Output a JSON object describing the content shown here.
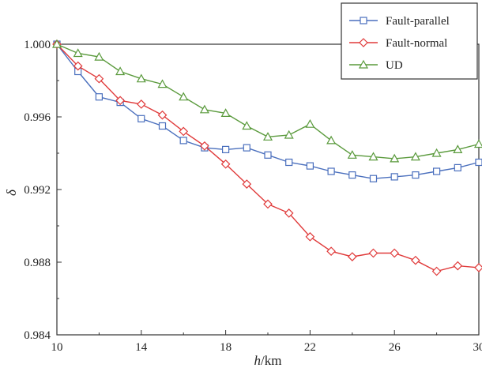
{
  "chart_data": {
    "type": "line",
    "xlabel": {
      "var": "h",
      "unit": "/km"
    },
    "ylabel": "δ",
    "xlim": [
      10,
      30
    ],
    "ylim": [
      0.984,
      1.0
    ],
    "x_ticks": [
      10,
      14,
      18,
      22,
      26,
      30
    ],
    "y_ticks": [
      "1.000",
      "0.996",
      "0.992",
      "0.988",
      "0.984"
    ],
    "y_tick_values": [
      1.0,
      0.996,
      0.992,
      0.988,
      0.984
    ],
    "legend_position": "top-right",
    "x": [
      10,
      11,
      12,
      13,
      14,
      15,
      16,
      17,
      18,
      19,
      20,
      21,
      22,
      23,
      24,
      25,
      26,
      27,
      28,
      29,
      30
    ],
    "series": [
      {
        "name": "Fault-parallel",
        "marker": "square",
        "color": "#4a6fbd",
        "values": [
          1.0,
          0.9985,
          0.9971,
          0.9968,
          0.9959,
          0.9955,
          0.9947,
          0.9943,
          0.9942,
          0.9943,
          0.9939,
          0.9935,
          0.9933,
          0.993,
          0.9928,
          0.9926,
          0.9927,
          0.9928,
          0.993,
          0.9932,
          0.9935
        ]
      },
      {
        "name": "Fault-normal",
        "marker": "diamond",
        "color": "#e03a3a",
        "values": [
          1.0,
          0.9988,
          0.9981,
          0.9969,
          0.9967,
          0.9961,
          0.9952,
          0.9944,
          0.9934,
          0.9923,
          0.9912,
          0.9907,
          0.9894,
          0.9886,
          0.9883,
          0.9885,
          0.9885,
          0.9881,
          0.9875,
          0.9878,
          0.9877
        ]
      },
      {
        "name": "UD",
        "marker": "triangle",
        "color": "#5a9a3c",
        "values": [
          1.0,
          0.9995,
          0.9993,
          0.9985,
          0.9981,
          0.9978,
          0.9971,
          0.9964,
          0.9962,
          0.9955,
          0.9949,
          0.995,
          0.9956,
          0.9947,
          0.9939,
          0.9938,
          0.9937,
          0.9938,
          0.994,
          0.9942,
          0.9945
        ]
      }
    ]
  }
}
